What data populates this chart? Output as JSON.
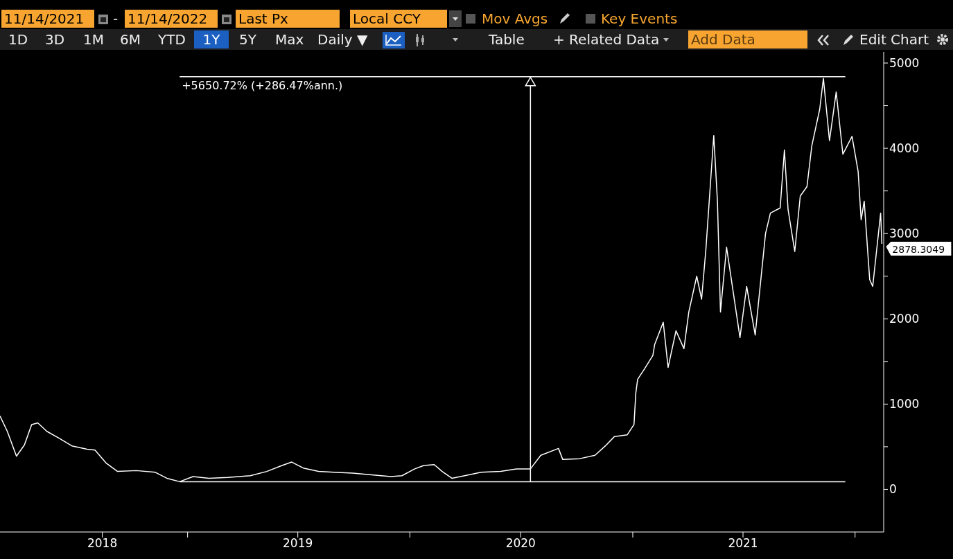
{
  "chart_data": {
    "type": "line",
    "marker": "none",
    "line_style": "solid",
    "grid": false,
    "xlim": [
      "2018-02-27",
      "2022-02-17"
    ],
    "xticks": [
      {
        "value": "2018-08-14",
        "label": "2018"
      },
      {
        "value": "2019-01-01",
        "label": null
      },
      {
        "value": "2019-07-01",
        "label": "2019"
      },
      {
        "value": "2020-01-01",
        "label": null
      },
      {
        "value": "2020-07-01",
        "label": "2020"
      },
      {
        "value": "2021-01-01",
        "label": null
      },
      {
        "value": "2021-07-01",
        "label": "2021"
      },
      {
        "value": "2022-01-01",
        "label": null
      }
    ],
    "ref_lines": [
      {
        "axis": "x",
        "value": "2020-07-17",
        "color": "#ffffff"
      }
    ],
    "ylim": [
      -500,
      5130
    ],
    "yticks": [
      0,
      {
        "value": 500,
        "label": null
      },
      1000,
      {
        "value": 1500,
        "label": null
      },
      2000,
      {
        "value": 2500,
        "label": null
      },
      3000,
      {
        "value": 3500,
        "label": null
      },
      4000,
      {
        "value": 4500,
        "label": null
      },
      5000
    ],
    "series": [
      {
        "color": "#ffffff",
        "x": [
          "2018-02-27",
          "2018-03-11",
          "2018-03-26",
          "2018-04-08",
          "2018-04-20",
          "2018-04-30",
          "2018-05-15",
          "2018-06-04",
          "2018-06-25",
          "2018-07-20",
          "2018-08-02",
          "2018-08-20",
          "2018-09-08",
          "2018-10-09",
          "2018-11-09",
          "2018-11-28",
          "2018-12-19",
          "2019-01-10",
          "2019-02-05",
          "2019-03-08",
          "2019-04-14",
          "2019-05-11",
          "2019-06-05",
          "2019-06-21",
          "2019-07-10",
          "2019-08-04",
          "2019-08-29",
          "2019-09-29",
          "2019-10-30",
          "2019-12-01",
          "2019-12-19",
          "2020-01-09",
          "2020-01-24",
          "2020-02-10",
          "2020-02-23",
          "2020-03-10",
          "2020-03-31",
          "2020-04-27",
          "2020-05-29",
          "2020-06-24",
          "2020-07-17",
          "2020-08-03",
          "2020-09-01",
          "2020-09-08",
          "2020-10-06",
          "2020-10-31",
          "2020-11-17",
          "2020-12-02",
          "2020-12-23",
          "2021-01-03",
          "2021-01-06",
          "2021-01-09",
          "2021-01-20",
          "2021-02-03",
          "2021-02-06",
          "2021-02-20",
          "2021-02-28",
          "2021-03-13",
          "2021-03-26",
          "2021-04-03",
          "2021-04-16",
          "2021-04-24",
          "2021-05-01",
          "2021-05-14",
          "2021-05-20",
          "2021-05-25",
          "2021-06-04",
          "2021-06-26",
          "2021-07-07",
          "2021-07-21",
          "2021-08-07",
          "2021-08-15",
          "2021-08-31",
          "2021-09-07",
          "2021-09-13",
          "2021-09-24",
          "2021-10-03",
          "2021-10-14",
          "2021-10-22",
          "2021-11-04",
          "2021-11-10",
          "2021-11-20",
          "2021-12-01",
          "2021-12-12",
          "2021-12-27",
          "2022-01-06",
          "2022-01-11",
          "2022-01-16",
          "2022-01-25",
          "2022-01-30",
          "2022-02-12",
          "2022-02-14"
        ],
        "values": [
          860,
          680,
          390,
          520,
          760,
          780,
          680,
          600,
          510,
          470,
          460,
          310,
          210,
          220,
          200,
          130,
          90,
          150,
          130,
          140,
          160,
          210,
          280,
          320,
          250,
          210,
          200,
          190,
          170,
          150,
          160,
          240,
          280,
          290,
          210,
          130,
          160,
          200,
          210,
          240,
          240,
          400,
          480,
          350,
          360,
          400,
          510,
          620,
          640,
          760,
          1130,
          1290,
          1410,
          1570,
          1700,
          1960,
          1430,
          1860,
          1650,
          2080,
          2500,
          2230,
          2810,
          4150,
          3380,
          2080,
          2840,
          1780,
          2380,
          1810,
          3000,
          3240,
          3300,
          3980,
          3280,
          2790,
          3440,
          3550,
          4030,
          4460,
          4820,
          4090,
          4660,
          3930,
          4140,
          3730,
          3160,
          3380,
          2460,
          2380,
          3240,
          2880
        ]
      },
      {
        "color": "#ffffff",
        "x": [
          "2018-12-19",
          "2021-12-16"
        ],
        "values": [
          4840,
          4840
        ]
      },
      {
        "color": "#ffffff",
        "x": [
          "2018-12-19",
          "2021-12-16"
        ],
        "values": [
          90,
          90
        ]
      }
    ],
    "annotations": [
      "11/14/2021",
      "-",
      "11/14/2022",
      "Last Px",
      "Local CCY",
      "Mov Avgs",
      "Key Events",
      "1D",
      "3D",
      "1M",
      "6M",
      "YTD",
      "1Y",
      "5Y",
      "Max",
      "Daily ▼",
      "Table",
      "+ Related Data",
      "Add Data",
      "Edit Chart",
      {
        "text": "+5650.72% (+286.47%ann.)",
        "x": "2018-12-19",
        "y": 4840
      },
      {
        "text": "2878.3049",
        "x": "2022-02-14",
        "y": 2880
      }
    ]
  }
}
